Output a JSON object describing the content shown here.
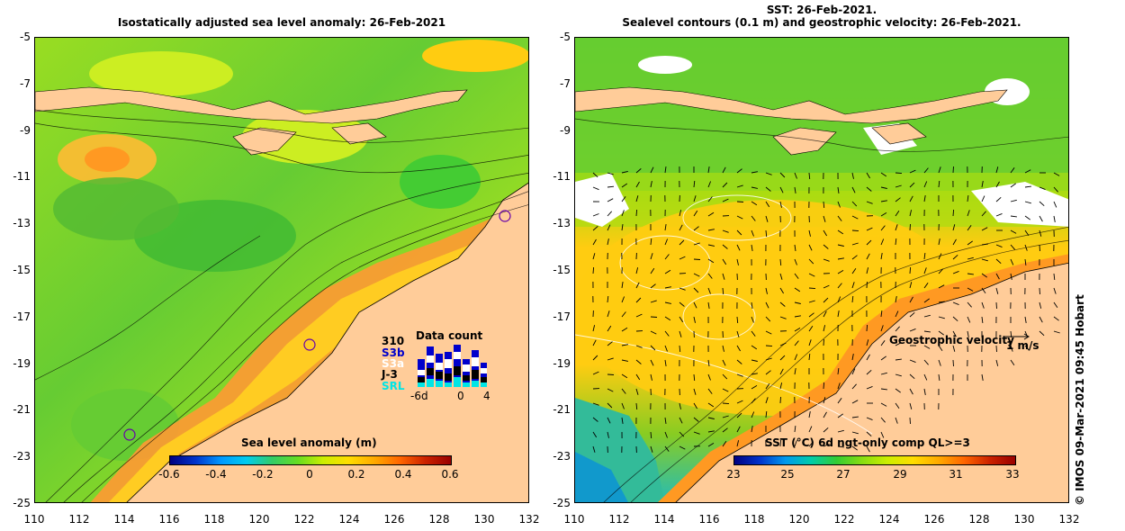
{
  "left_panel": {
    "title": "Isostatically adjusted sea level anomaly: 26-Feb-2021",
    "colorbar": {
      "title": "Sea level anomaly (m)",
      "labels": [
        "-0.6",
        "-0.4",
        "-0.2",
        "0",
        "0.2",
        "0.4",
        "0.6"
      ]
    },
    "data_count": {
      "title": "Data count",
      "max": "310",
      "sats": [
        {
          "name": "S3b",
          "color": "#0000cc"
        },
        {
          "name": "S3a",
          "color": "#ffffff"
        },
        {
          "name": "J-3",
          "color": "#000000"
        },
        {
          "name": "SRL",
          "color": "#00e5e5"
        }
      ],
      "x_labels": [
        "-6d",
        "0",
        "4"
      ]
    }
  },
  "right_panel": {
    "title_line1": "SST: 26-Feb-2021.",
    "title_line2": "Sealevel contours (0.1 m) and geostrophic velocity: 26-Feb-2021.",
    "colorbar": {
      "title": "SST (°C) 6d ngt-only comp QL>=3",
      "labels": [
        "23",
        "25",
        "27",
        "29",
        "31",
        "33"
      ]
    },
    "velocity_label": "Geostrophic velocity",
    "velocity_scale": "1 m/s"
  },
  "axes": {
    "x_ticks": [
      "110",
      "112",
      "114",
      "116",
      "118",
      "120",
      "122",
      "124",
      "126",
      "128",
      "130",
      "132"
    ],
    "y_ticks": [
      "-5",
      "-7",
      "-9",
      "-11",
      "-13",
      "-15",
      "-17",
      "-19",
      "-21",
      "-23",
      "-25"
    ]
  },
  "colors": {
    "land": "#ffcc99",
    "sla_scale": [
      "#000080",
      "#0066ff",
      "#00ccff",
      "#33cc33",
      "#ccee00",
      "#ffcc00",
      "#ff6600",
      "#cc0000"
    ]
  },
  "stamp": "© IMOS 09-Mar-2021 09:45 Hobart"
}
